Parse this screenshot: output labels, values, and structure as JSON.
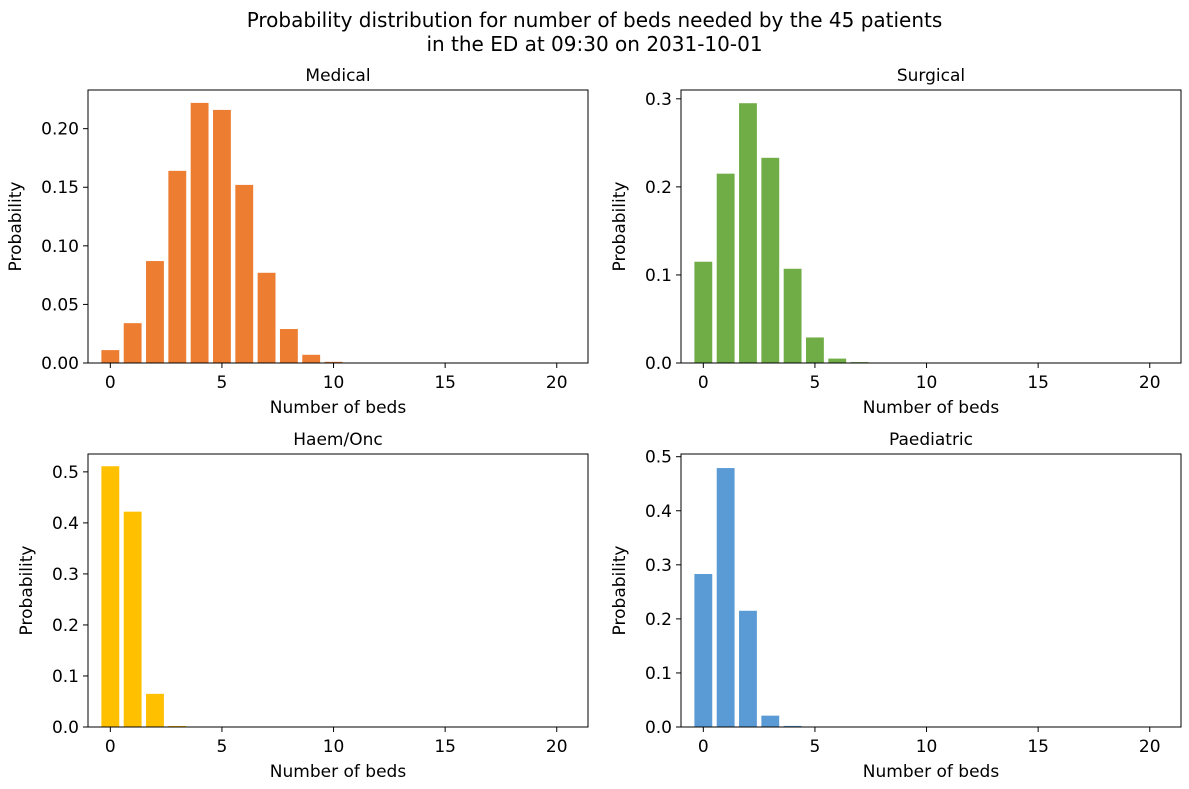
{
  "figure": {
    "title_line1": "Probability distribution for number of beds needed by the 45 patients",
    "title_line2": "in the ED at 09:30 on 2031-10-01"
  },
  "chart_data": [
    {
      "type": "bar",
      "title": "Medical",
      "xlabel": "Number of beds",
      "ylabel": "Probability",
      "color": "#ED7D31",
      "xlim": [
        -1,
        21.4
      ],
      "ylim": [
        0,
        0.233
      ],
      "xticks": [
        0,
        5,
        10,
        15,
        20
      ],
      "yticks": [
        0.0,
        0.05,
        0.1,
        0.15,
        0.2
      ],
      "ytick_labels": [
        "0.00",
        "0.05",
        "0.10",
        "0.15",
        "0.20"
      ],
      "x": [
        0,
        1,
        2,
        3,
        4,
        5,
        6,
        7,
        8,
        9,
        10,
        11,
        12,
        13,
        14,
        15,
        16,
        17,
        18,
        19,
        20
      ],
      "values": [
        0.011,
        0.034,
        0.087,
        0.164,
        0.222,
        0.216,
        0.152,
        0.077,
        0.029,
        0.007,
        0.001,
        0,
        0,
        0,
        0,
        0,
        0,
        0,
        0,
        0,
        0
      ]
    },
    {
      "type": "bar",
      "title": "Surgical",
      "xlabel": "Number of beds",
      "ylabel": "Probability",
      "color": "#70AD47",
      "xlim": [
        -1,
        21.4
      ],
      "ylim": [
        0,
        0.31
      ],
      "xticks": [
        0,
        5,
        10,
        15,
        20
      ],
      "yticks": [
        0.0,
        0.1,
        0.2,
        0.3
      ],
      "ytick_labels": [
        "0.0",
        "0.1",
        "0.2",
        "0.3"
      ],
      "x": [
        0,
        1,
        2,
        3,
        4,
        5,
        6,
        7,
        8,
        9,
        10,
        11,
        12,
        13,
        14,
        15,
        16,
        17,
        18,
        19,
        20
      ],
      "values": [
        0.115,
        0.215,
        0.295,
        0.233,
        0.107,
        0.029,
        0.005,
        0.001,
        0,
        0,
        0,
        0,
        0,
        0,
        0,
        0,
        0,
        0,
        0,
        0,
        0
      ]
    },
    {
      "type": "bar",
      "title": "Haem/Onc",
      "xlabel": "Number of beds",
      "ylabel": "Probability",
      "color": "#FFC000",
      "xlim": [
        -1,
        21.4
      ],
      "ylim": [
        0,
        0.535
      ],
      "xticks": [
        0,
        5,
        10,
        15,
        20
      ],
      "yticks": [
        0.0,
        0.1,
        0.2,
        0.3,
        0.4,
        0.5
      ],
      "ytick_labels": [
        "0.0",
        "0.1",
        "0.2",
        "0.3",
        "0.4",
        "0.5"
      ],
      "x": [
        0,
        1,
        2,
        3,
        4,
        5,
        6,
        7,
        8,
        9,
        10,
        11,
        12,
        13,
        14,
        15,
        16,
        17,
        18,
        19,
        20
      ],
      "values": [
        0.511,
        0.422,
        0.065,
        0.002,
        0,
        0,
        0,
        0,
        0,
        0,
        0,
        0,
        0,
        0,
        0,
        0,
        0,
        0,
        0,
        0,
        0
      ]
    },
    {
      "type": "bar",
      "title": "Paediatric",
      "xlabel": "Number of beds",
      "ylabel": "Probability",
      "color": "#5B9BD5",
      "xlim": [
        -1,
        21.4
      ],
      "ylim": [
        0,
        0.505
      ],
      "xticks": [
        0,
        5,
        10,
        15,
        20
      ],
      "yticks": [
        0.0,
        0.1,
        0.2,
        0.3,
        0.4,
        0.5
      ],
      "ytick_labels": [
        "0.0",
        "0.1",
        "0.2",
        "0.3",
        "0.4",
        "0.5"
      ],
      "x": [
        0,
        1,
        2,
        3,
        4,
        5,
        6,
        7,
        8,
        9,
        10,
        11,
        12,
        13,
        14,
        15,
        16,
        17,
        18,
        19,
        20
      ],
      "values": [
        0.283,
        0.479,
        0.215,
        0.021,
        0.002,
        0,
        0,
        0,
        0,
        0,
        0,
        0,
        0,
        0,
        0,
        0,
        0,
        0,
        0,
        0,
        0
      ]
    }
  ]
}
